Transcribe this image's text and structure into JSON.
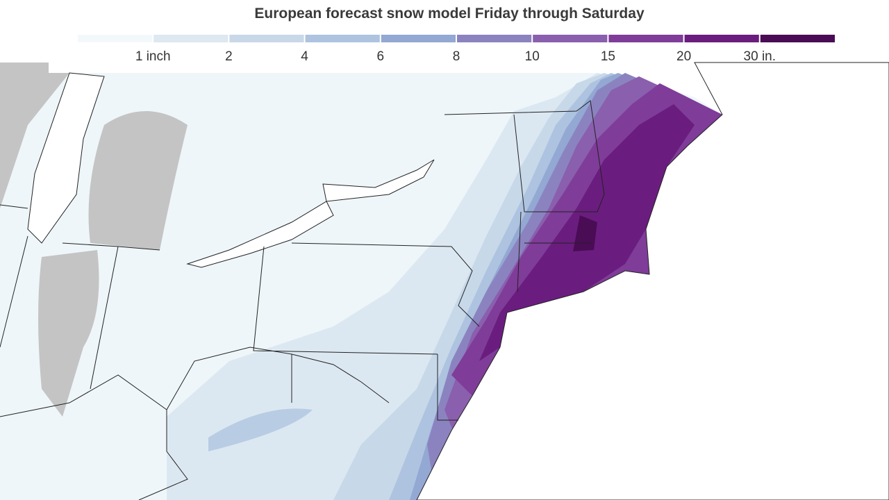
{
  "header": {
    "title": "European forecast snow model Friday through Saturday"
  },
  "legend": {
    "colors": [
      "#f3f9fb",
      "#dde8f0",
      "#c8d8e8",
      "#aec3df",
      "#93a8d2",
      "#8b83bf",
      "#8a5fae",
      "#7f3c99",
      "#6a1d7e",
      "#4a0c55"
    ],
    "labels": [
      "1 inch",
      "2",
      "4",
      "6",
      "8",
      "10",
      "15",
      "20",
      "30 in."
    ]
  }
}
